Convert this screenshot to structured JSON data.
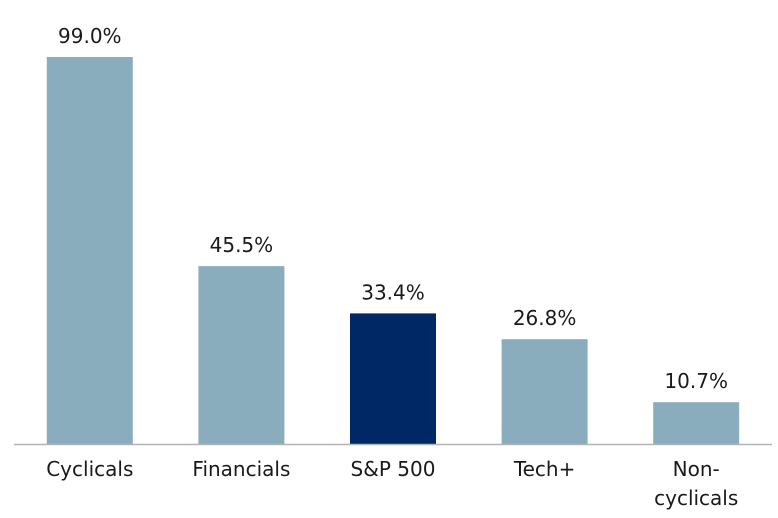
{
  "chart_data": {
    "type": "bar",
    "title": "",
    "xlabel": "",
    "ylabel": "",
    "categories": [
      "Cyclicals",
      "Financials",
      "S&P 500",
      "Tech+",
      "Non-\ncyclicals"
    ],
    "values": [
      99.0,
      45.5,
      33.4,
      26.8,
      10.7
    ],
    "value_labels": [
      "99.0%",
      "45.5%",
      "33.4%",
      "26.8%",
      "10.7%"
    ],
    "ylim": [
      0,
      99.0
    ],
    "grid": false,
    "highlight_index": 2,
    "colors": {
      "bar": "#8aadbd",
      "highlight": "#002865",
      "axis": "#b3b3b3"
    }
  }
}
